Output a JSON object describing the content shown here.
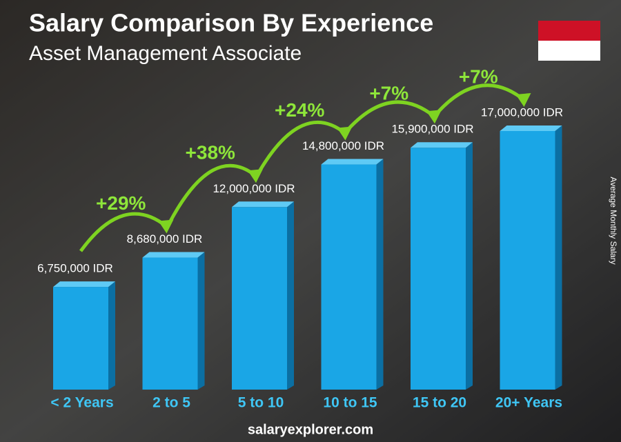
{
  "chart_data": {
    "type": "bar",
    "title": "Salary Comparison By Experience",
    "subtitle": "Asset Management Associate",
    "y_label": "Average Monthly Salary",
    "source": "salaryexplorer.com",
    "categories": [
      "< 2 Years",
      "2 to 5",
      "5 to 10",
      "10 to 15",
      "15 to 20",
      "20+ Years"
    ],
    "values": [
      6750000,
      8680000,
      12000000,
      14800000,
      15900000,
      17000000
    ],
    "value_labels": [
      "6,750,000 IDR",
      "8,680,000 IDR",
      "12,000,000 IDR",
      "14,800,000 IDR",
      "15,900,000 IDR",
      "17,000,000 IDR"
    ],
    "annotations": [
      "+29%",
      "+38%",
      "+24%",
      "+7%",
      "+7%"
    ],
    "color": "#1aa6e6"
  }
}
